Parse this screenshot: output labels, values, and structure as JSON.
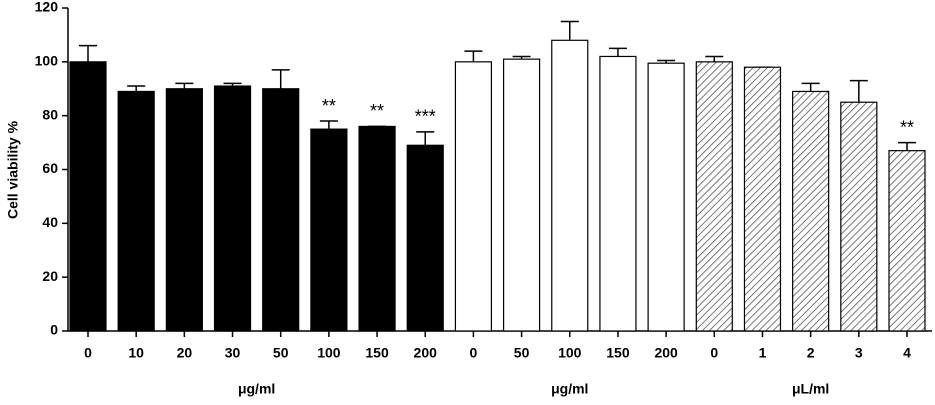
{
  "chart_data": {
    "type": "bar",
    "y_label": "Cell viability %",
    "categories": [
      "0",
      "10",
      "20",
      "30",
      "50",
      "100",
      "150",
      "200",
      "0",
      "50",
      "100",
      "150",
      "200",
      "0",
      "1",
      "2",
      "3",
      "4"
    ],
    "series": [
      {
        "name": "μg/ml",
        "color": "#000000",
        "hatch": false,
        "values": [
          100,
          89,
          90,
          91,
          90,
          75,
          76,
          69,
          null,
          null,
          null,
          null,
          null,
          null,
          null,
          null,
          null,
          null
        ],
        "errors": [
          6,
          2,
          2,
          1,
          7,
          3,
          0,
          5,
          null,
          null,
          null,
          null,
          null,
          null,
          null,
          null,
          null,
          null
        ],
        "annotations": [
          null,
          null,
          null,
          null,
          null,
          "**",
          "**",
          "***",
          null,
          null,
          null,
          null,
          null,
          null,
          null,
          null,
          null,
          null
        ]
      },
      {
        "name": "μg/ml",
        "color": "#ffffff",
        "hatch": false,
        "values": [
          null,
          null,
          null,
          null,
          null,
          null,
          null,
          null,
          100,
          101,
          108,
          102,
          99.5,
          null,
          null,
          null,
          null,
          null
        ],
        "errors": [
          null,
          null,
          null,
          null,
          null,
          null,
          null,
          null,
          4,
          1,
          7,
          3,
          1,
          null,
          null,
          null,
          null,
          null
        ],
        "annotations": [
          null,
          null,
          null,
          null,
          null,
          null,
          null,
          null,
          null,
          null,
          null,
          null,
          null,
          null,
          null,
          null,
          null,
          null
        ]
      },
      {
        "name": "μL/ml",
        "color": "#555555",
        "hatch": true,
        "values": [
          null,
          null,
          null,
          null,
          null,
          null,
          null,
          null,
          null,
          null,
          null,
          null,
          null,
          100,
          98,
          89,
          85,
          67
        ],
        "errors": [
          null,
          null,
          null,
          null,
          null,
          null,
          null,
          null,
          null,
          null,
          null,
          null,
          null,
          2,
          0,
          3,
          8,
          3
        ],
        "annotations": [
          null,
          null,
          null,
          null,
          null,
          null,
          null,
          null,
          null,
          null,
          null,
          null,
          null,
          null,
          null,
          null,
          null,
          "**"
        ]
      }
    ],
    "ylim": [
      0,
      120
    ],
    "yticks": [
      0,
      20,
      40,
      60,
      80,
      100,
      120
    ]
  }
}
